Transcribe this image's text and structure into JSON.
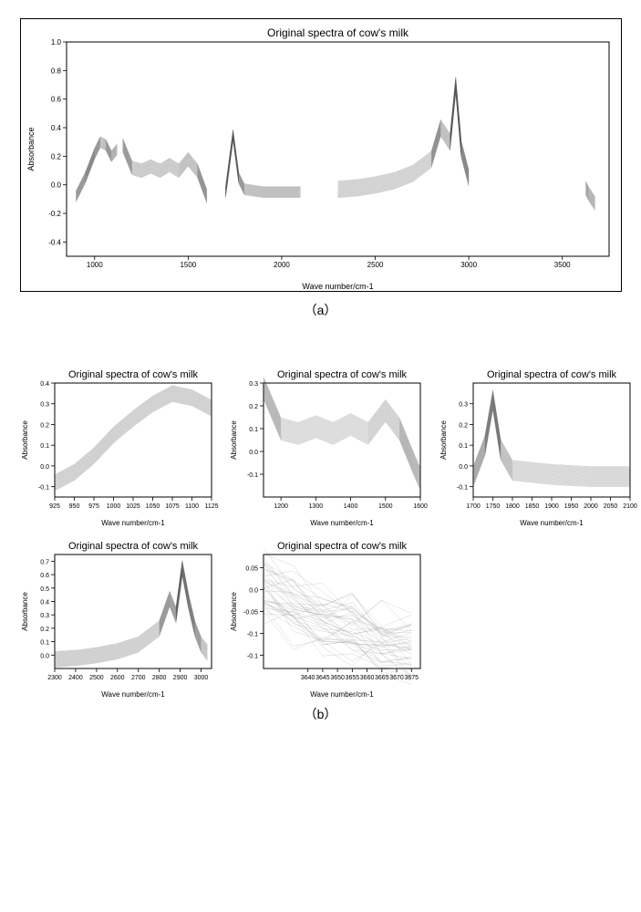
{
  "common": {
    "title": "Original spectra of cow's milk",
    "xlabel": "Wave number/cm-1",
    "ylabel": "Absorbance",
    "series_color": "#555555",
    "series_opacity": 0.5,
    "series_count": 40,
    "background": "#ffffff"
  },
  "caption_a": "（a）",
  "caption_b": "（b）",
  "main_chart": {
    "xlim": [
      850,
      3750
    ],
    "ylim": [
      -0.5,
      1.0
    ],
    "xticks": [
      1000,
      1500,
      2000,
      2500,
      3000,
      3500
    ],
    "yticks": [
      -0.4,
      -0.2,
      0.0,
      0.2,
      0.4,
      0.6,
      0.8,
      1.0
    ],
    "segments": [
      {
        "x": [
          900,
          950,
          1000,
          1030,
          1060,
          1090,
          1120
        ],
        "y_base": [
          -0.08,
          0.05,
          0.22,
          0.3,
          0.28,
          0.2,
          0.25
        ],
        "spread": 0.04
      },
      {
        "x": [
          1150,
          1200,
          1250,
          1300,
          1350,
          1400,
          1450,
          1500,
          1550,
          1600
        ],
        "y_base": [
          0.28,
          0.12,
          0.1,
          0.13,
          0.1,
          0.14,
          0.1,
          0.18,
          0.1,
          -0.08
        ],
        "spread": 0.05
      },
      {
        "x": [
          1700,
          1740,
          1770,
          1800,
          1850,
          1900,
          2000,
          2100
        ],
        "y_base": [
          -0.05,
          0.35,
          0.05,
          -0.03,
          -0.04,
          -0.05,
          -0.05,
          -0.05
        ],
        "spread": 0.04
      },
      {
        "x": [
          2300,
          2400,
          2500,
          2600,
          2700,
          2800,
          2850,
          2900,
          2930,
          2960,
          3000
        ],
        "y_base": [
          -0.03,
          -0.02,
          0.0,
          0.03,
          0.08,
          0.18,
          0.4,
          0.3,
          0.7,
          0.25,
          0.05
        ],
        "spread": 0.06
      },
      {
        "x": [
          3625,
          3640,
          3650,
          3660,
          3675
        ],
        "y_base": [
          -0.02,
          -0.06,
          -0.08,
          -0.1,
          -0.13
        ],
        "spread": 0.05
      }
    ]
  },
  "small_charts": [
    {
      "xlim": [
        925,
        1125
      ],
      "ylim": [
        -0.15,
        0.4
      ],
      "xticks": [
        925,
        950,
        975,
        1000,
        1025,
        1050,
        1075,
        1100,
        1125
      ],
      "yticks": [
        -0.1,
        0.0,
        0.1,
        0.2,
        0.3,
        0.4
      ],
      "segments": [
        {
          "x": [
            925,
            950,
            975,
            1000,
            1025,
            1050,
            1075,
            1100,
            1125
          ],
          "y_base": [
            -0.08,
            -0.03,
            0.05,
            0.15,
            0.23,
            0.3,
            0.35,
            0.33,
            0.28
          ],
          "spread": 0.04
        }
      ]
    },
    {
      "xlim": [
        1150,
        1600
      ],
      "ylim": [
        -0.2,
        0.3
      ],
      "xticks": [
        1200,
        1300,
        1400,
        1500,
        1600
      ],
      "yticks": [
        -0.1,
        0.0,
        0.1,
        0.2,
        0.3
      ],
      "segments": [
        {
          "x": [
            1150,
            1200,
            1250,
            1300,
            1350,
            1400,
            1450,
            1500,
            1540,
            1580,
            1600
          ],
          "y_base": [
            0.28,
            0.1,
            0.08,
            0.11,
            0.08,
            0.12,
            0.08,
            0.18,
            0.1,
            -0.05,
            -0.12
          ],
          "spread": 0.05
        }
      ]
    },
    {
      "xlim": [
        1700,
        2100
      ],
      "ylim": [
        -0.15,
        0.4
      ],
      "xticks": [
        1700,
        1750,
        1800,
        1850,
        1900,
        1950,
        2000,
        2050,
        2100
      ],
      "yticks": [
        -0.1,
        0.0,
        0.1,
        0.2,
        0.3
      ],
      "segments": [
        {
          "x": [
            1700,
            1730,
            1750,
            1770,
            1800,
            1850,
            1900,
            2000,
            2100
          ],
          "y_base": [
            -0.05,
            0.1,
            0.32,
            0.08,
            -0.02,
            -0.03,
            -0.04,
            -0.05,
            -0.05
          ],
          "spread": 0.05
        }
      ]
    },
    {
      "xlim": [
        2300,
        3050
      ],
      "ylim": [
        -0.1,
        0.75
      ],
      "xticks": [
        2300,
        2400,
        2500,
        2600,
        2700,
        2800,
        2900,
        3000
      ],
      "yticks": [
        0.0,
        0.1,
        0.2,
        0.3,
        0.4,
        0.5,
        0.6,
        0.7
      ],
      "segments": [
        {
          "x": [
            2300,
            2400,
            2500,
            2600,
            2700,
            2800,
            2850,
            2880,
            2910,
            2940,
            2970,
            3000,
            3030
          ],
          "y_base": [
            -0.03,
            -0.02,
            0.0,
            0.03,
            0.08,
            0.2,
            0.42,
            0.3,
            0.65,
            0.4,
            0.2,
            0.08,
            0.02
          ],
          "spread": 0.06
        }
      ]
    },
    {
      "xlim": [
        3625,
        3678
      ],
      "ylim": [
        -0.18,
        0.08
      ],
      "xticks": [
        3640,
        3645,
        3650,
        3655,
        3660,
        3665,
        3670,
        3675
      ],
      "yticks": [
        -0.15,
        -0.1,
        -0.05,
        0.0,
        0.05
      ],
      "segments": [
        {
          "x": [
            3625,
            3635,
            3645,
            3655,
            3665,
            3675
          ],
          "y_base": [
            0.0,
            -0.04,
            -0.07,
            -0.09,
            -0.11,
            -0.13
          ],
          "spread": 0.06,
          "noisy": true
        }
      ]
    }
  ]
}
